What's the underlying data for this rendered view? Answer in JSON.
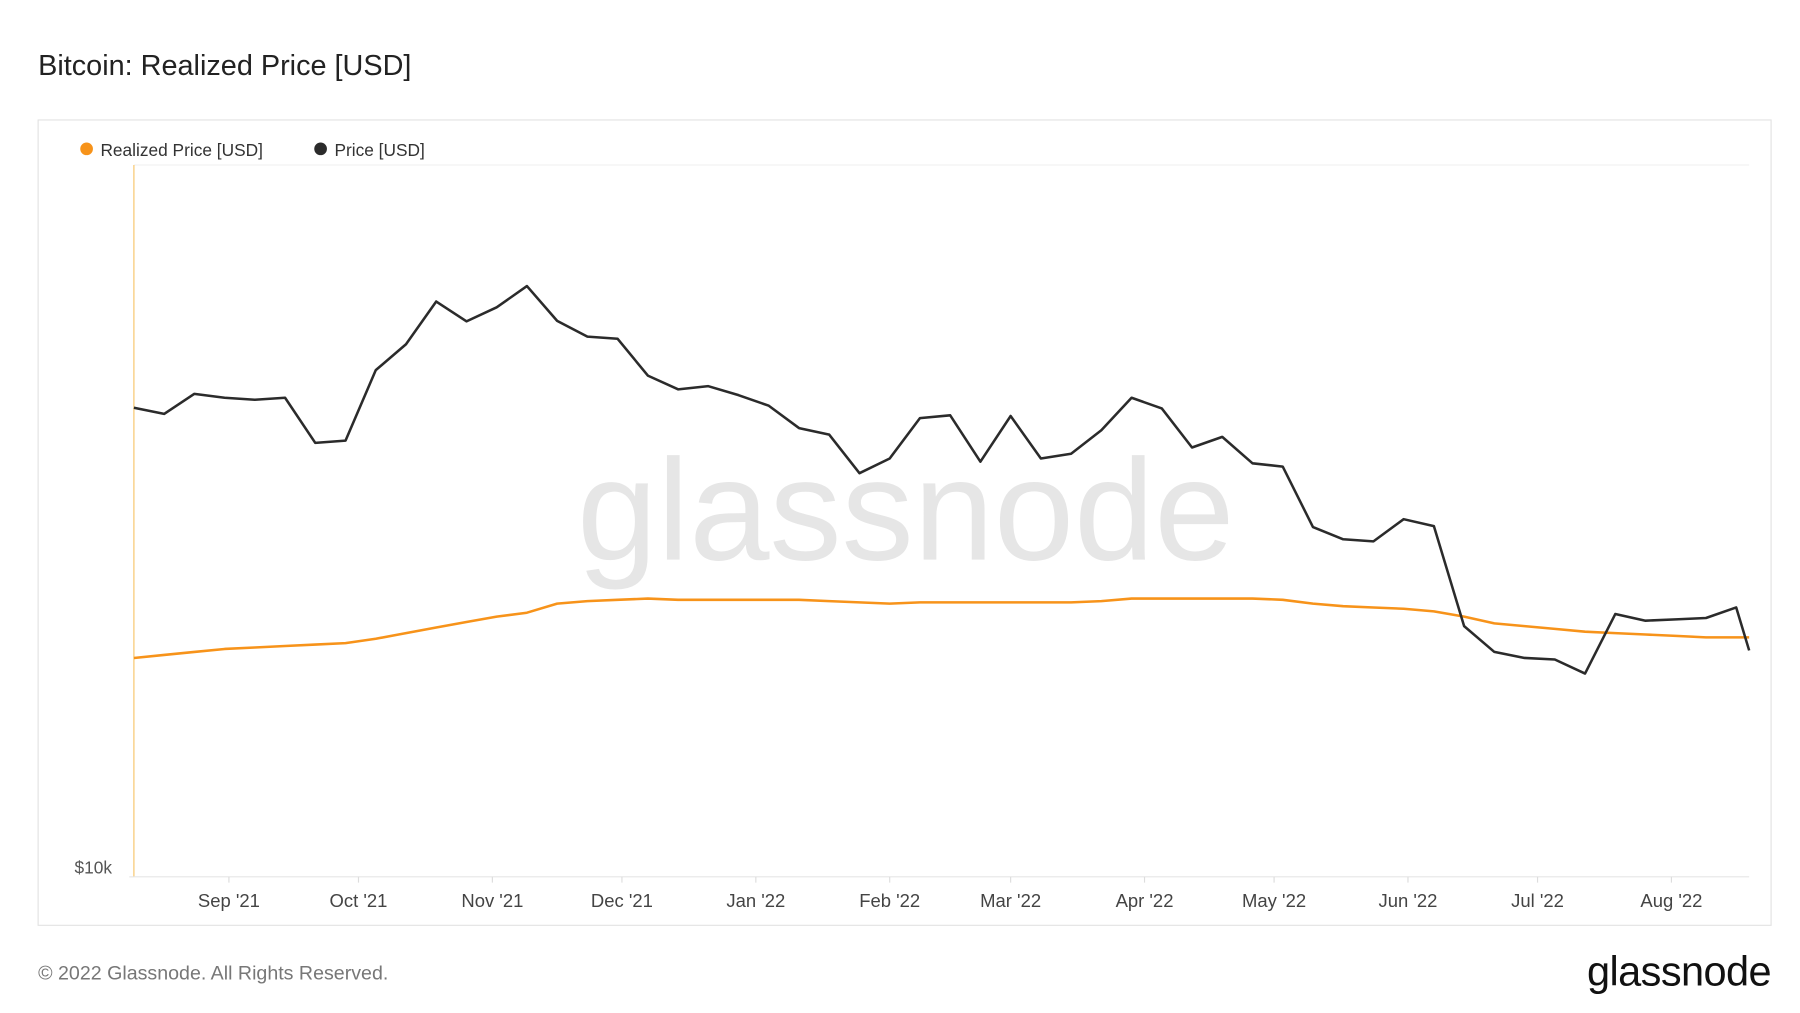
{
  "chart_data": {
    "type": "line",
    "title": "Bitcoin: Realized Price [USD]",
    "watermark": "glassnode",
    "footer": "© 2022 Glassnode. All Rights Reserved.",
    "logo": "glassnode",
    "log_scale": true,
    "legend": "top-left",
    "ylim": [
      10000,
      100000
    ],
    "yticks": [
      {
        "value": 10000,
        "label": "$10k"
      }
    ],
    "xlim": [
      "2021-08-10",
      "2022-08-19"
    ],
    "xticks": [
      {
        "value": "2021-09-01",
        "label": "Sep '21"
      },
      {
        "value": "2021-10-01",
        "label": "Oct '21"
      },
      {
        "value": "2021-11-01",
        "label": "Nov '21"
      },
      {
        "value": "2021-12-01",
        "label": "Dec '21"
      },
      {
        "value": "2022-01-01",
        "label": "Jan '22"
      },
      {
        "value": "2022-02-01",
        "label": "Feb '22"
      },
      {
        "value": "2022-03-01",
        "label": "Mar '22"
      },
      {
        "value": "2022-04-01",
        "label": "Apr '22"
      },
      {
        "value": "2022-05-01",
        "label": "May '22"
      },
      {
        "value": "2022-06-01",
        "label": "Jun '22"
      },
      {
        "value": "2022-07-01",
        "label": "Jul '22"
      },
      {
        "value": "2022-08-01",
        "label": "Aug '22"
      }
    ],
    "x": [
      "2021-08-10",
      "2021-08-17",
      "2021-08-24",
      "2021-08-31",
      "2021-09-07",
      "2021-09-14",
      "2021-09-21",
      "2021-09-28",
      "2021-10-05",
      "2021-10-12",
      "2021-10-19",
      "2021-10-26",
      "2021-11-02",
      "2021-11-09",
      "2021-11-16",
      "2021-11-23",
      "2021-11-30",
      "2021-12-07",
      "2021-12-14",
      "2021-12-21",
      "2021-12-28",
      "2022-01-04",
      "2022-01-11",
      "2022-01-18",
      "2022-01-25",
      "2022-02-01",
      "2022-02-08",
      "2022-02-15",
      "2022-02-22",
      "2022-03-01",
      "2022-03-08",
      "2022-03-15",
      "2022-03-22",
      "2022-03-29",
      "2022-04-05",
      "2022-04-12",
      "2022-04-19",
      "2022-04-26",
      "2022-05-03",
      "2022-05-10",
      "2022-05-17",
      "2022-05-24",
      "2022-05-31",
      "2022-06-07",
      "2022-06-14",
      "2022-06-21",
      "2022-06-28",
      "2022-07-05",
      "2022-07-12",
      "2022-07-19",
      "2022-07-26",
      "2022-08-02",
      "2022-08-09",
      "2022-08-16",
      "2022-08-19"
    ],
    "series": [
      {
        "name": "Realized Price [USD]",
        "color": "#f7931a",
        "values": [
          20300,
          20500,
          20700,
          20900,
          21000,
          21100,
          21200,
          21300,
          21600,
          22000,
          22400,
          22800,
          23200,
          23500,
          24200,
          24400,
          24500,
          24600,
          24500,
          24500,
          24500,
          24500,
          24500,
          24400,
          24300,
          24200,
          24300,
          24300,
          24300,
          24300,
          24300,
          24300,
          24400,
          24600,
          24600,
          24600,
          24600,
          24600,
          24500,
          24200,
          24000,
          23900,
          23800,
          23600,
          23200,
          22700,
          22500,
          22300,
          22100,
          22000,
          21900,
          21800,
          21700,
          21700,
          21700
        ]
      },
      {
        "name": "Price [USD]",
        "color": "#2b2b2b",
        "values": [
          45600,
          44700,
          47700,
          47100,
          46800,
          47100,
          40700,
          41000,
          51500,
          56000,
          64300,
          60300,
          63100,
          67600,
          60400,
          57400,
          57000,
          50600,
          48400,
          48900,
          47500,
          45900,
          42700,
          41800,
          36900,
          38700,
          44100,
          44500,
          38300,
          44400,
          38700,
          39300,
          42400,
          47100,
          45500,
          40100,
          41500,
          38100,
          37700,
          31000,
          29800,
          29600,
          31800,
          31100,
          22500,
          20700,
          20300,
          20200,
          19300,
          23400,
          22900,
          23000,
          23100,
          23900,
          20800
        ]
      }
    ]
  }
}
